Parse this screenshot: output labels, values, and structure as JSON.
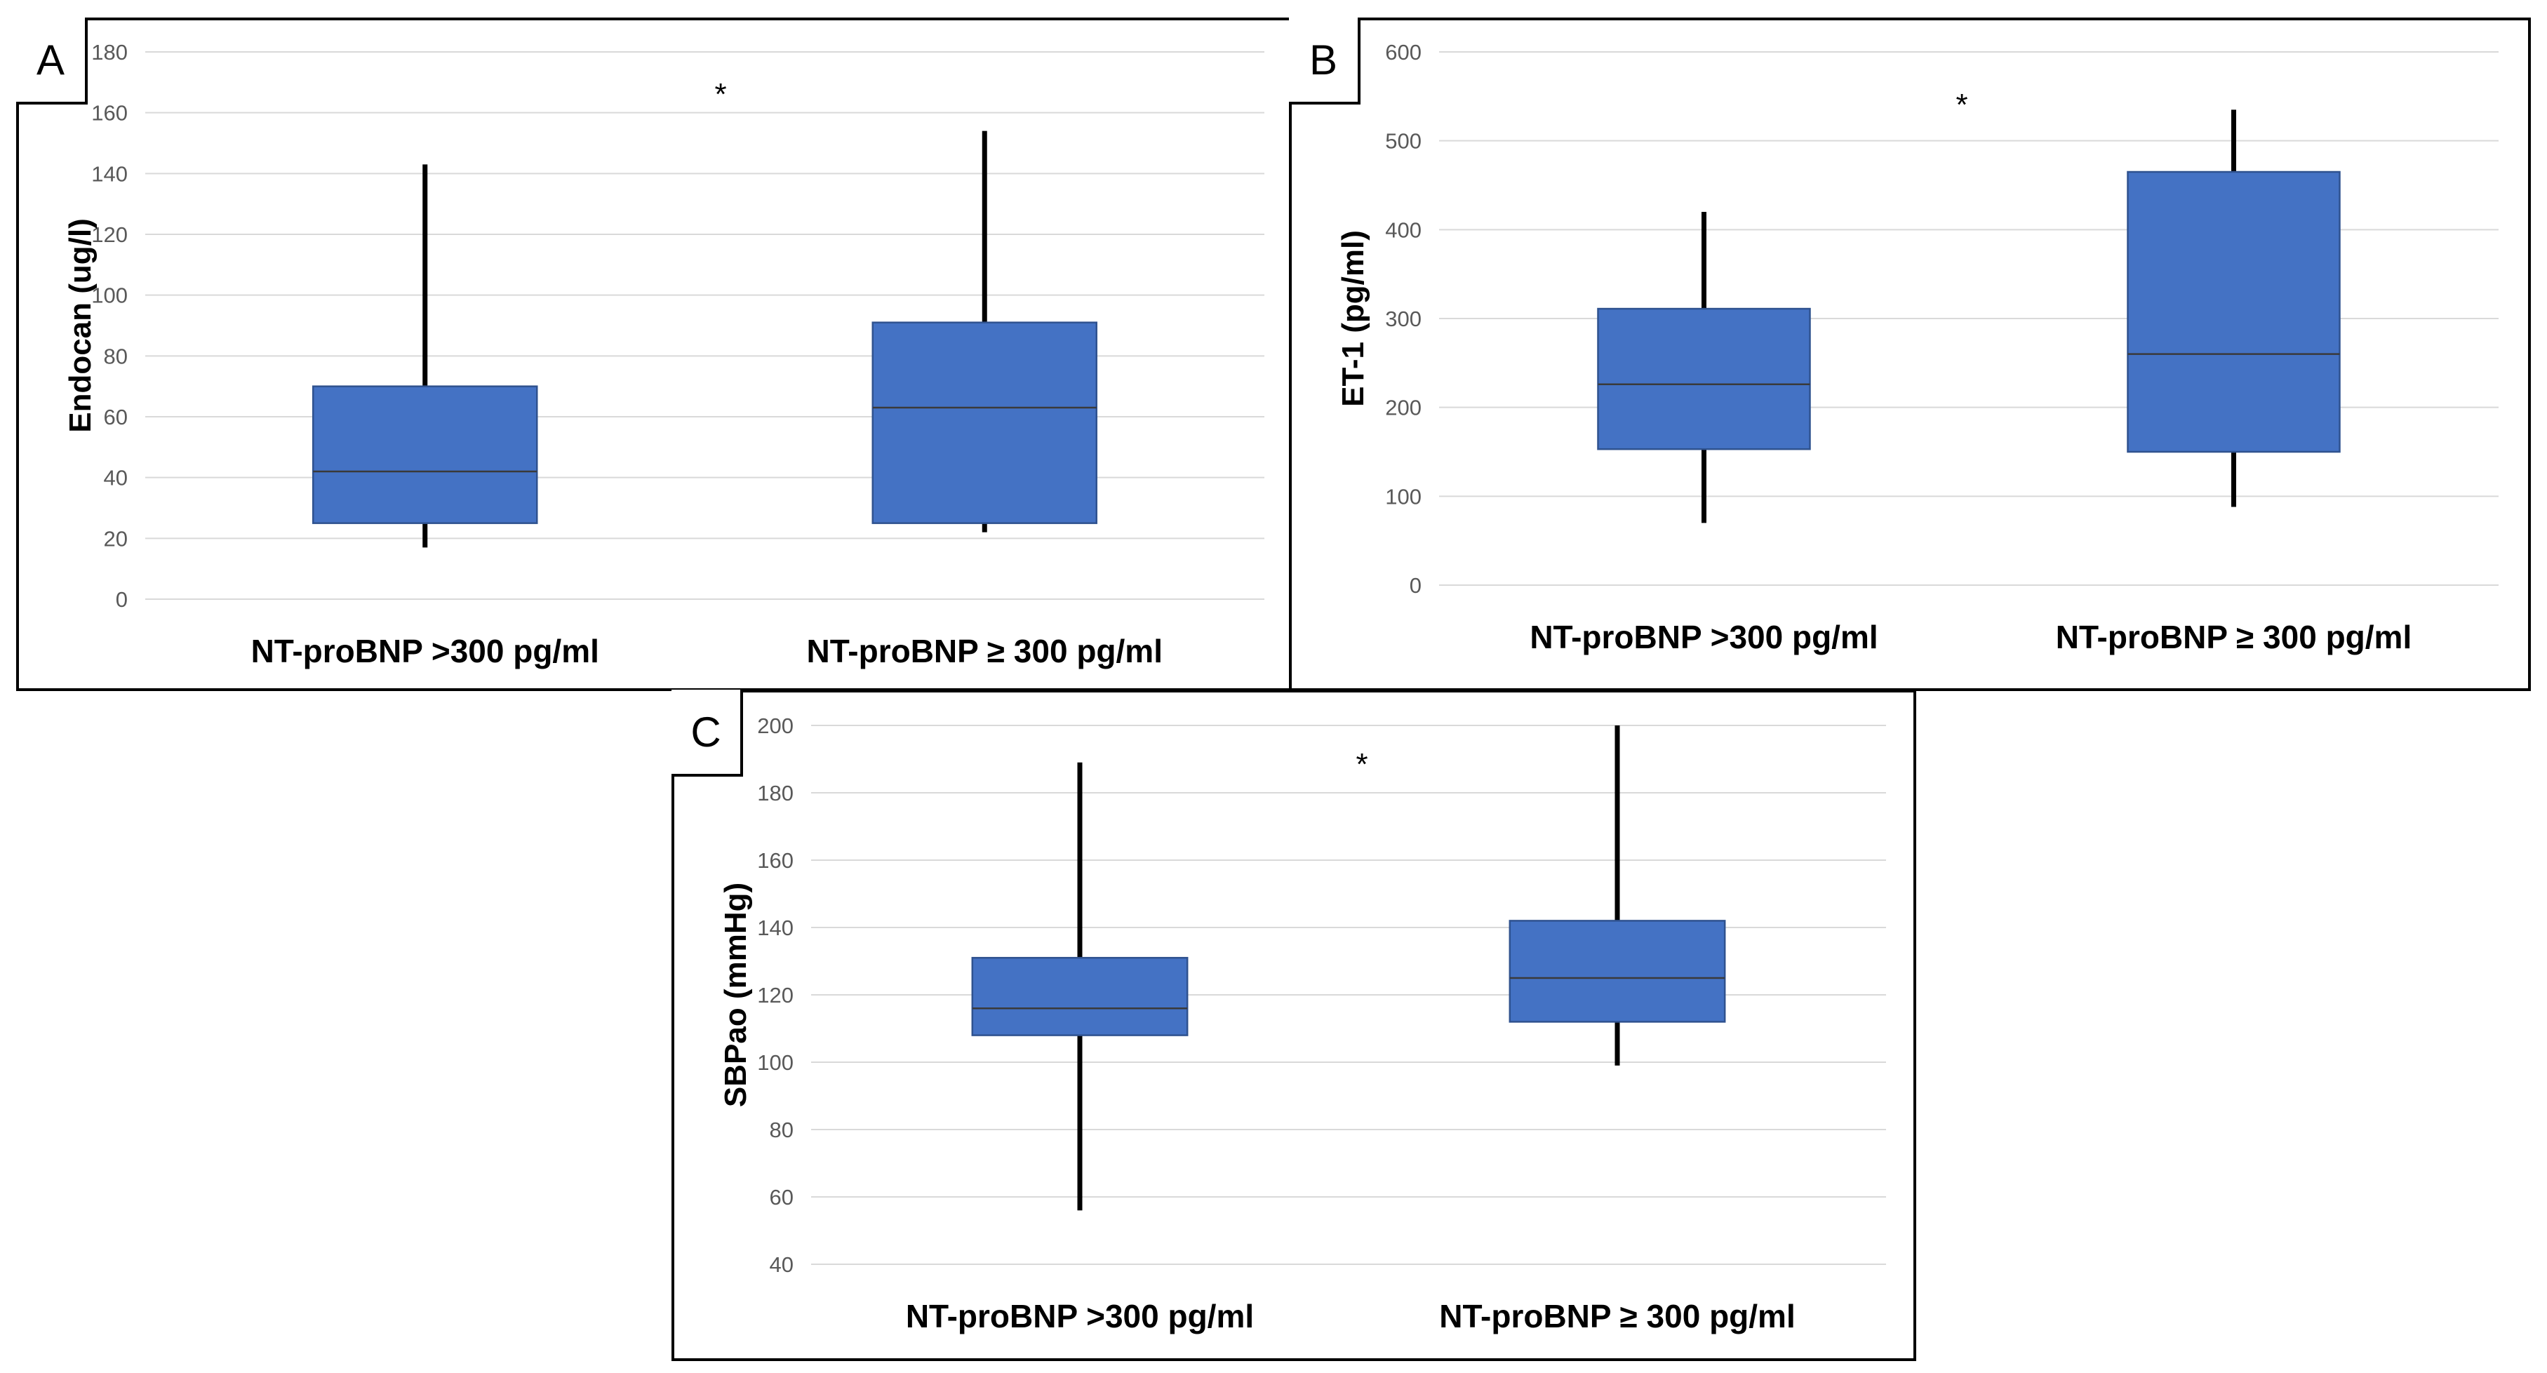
{
  "colors": {
    "box_fill": "#4472C4",
    "box_stroke": "#2F528F",
    "median": "#3A3A3A",
    "whisker": "#000000",
    "grid": "#D9D9D9"
  },
  "panels": [
    {
      "id": "a",
      "letter": "A",
      "significance": "*"
    },
    {
      "id": "b",
      "letter": "B",
      "significance": "*"
    },
    {
      "id": "c",
      "letter": "C",
      "significance": "*"
    }
  ],
  "chart_data": [
    {
      "type": "boxplot",
      "panel": "A",
      "ylabel": "Endocan (ug/l)",
      "ylim": [
        0,
        180
      ],
      "yticks": [
        0,
        20,
        40,
        60,
        80,
        100,
        120,
        140,
        160,
        180
      ],
      "categories": [
        "NT-proBNP >300 pg/ml",
        "NT-proBNP ≥ 300 pg/ml"
      ],
      "boxes": [
        {
          "min": 17,
          "q1": 25,
          "median": 42,
          "q3": 70,
          "max": 143
        },
        {
          "min": 22,
          "q1": 25,
          "median": 63,
          "q3": 91,
          "max": 154
        }
      ],
      "annotation": "*"
    },
    {
      "type": "boxplot",
      "panel": "B",
      "ylabel": "ET-1 (pg/ml)",
      "ylim": [
        0,
        600
      ],
      "yticks": [
        0,
        100,
        200,
        300,
        400,
        500,
        600
      ],
      "categories": [
        "NT-proBNP >300 pg/ml",
        "NT-proBNP ≥ 300 pg/ml"
      ],
      "boxes": [
        {
          "min": 70,
          "q1": 153,
          "median": 226,
          "q3": 311,
          "max": 420
        },
        {
          "min": 88,
          "q1": 150,
          "median": 260,
          "q3": 465,
          "max": 535
        }
      ],
      "annotation": "*"
    },
    {
      "type": "boxplot",
      "panel": "C",
      "ylabel": "SBPao (mmHg)",
      "ylim": [
        40,
        200
      ],
      "yticks": [
        40,
        60,
        80,
        100,
        120,
        140,
        160,
        180,
        200
      ],
      "categories": [
        "NT-proBNP >300 pg/ml",
        "NT-proBNP ≥ 300 pg/ml"
      ],
      "boxes": [
        {
          "min": 56,
          "q1": 108,
          "median": 116,
          "q3": 131,
          "max": 189
        },
        {
          "min": 99,
          "q1": 112,
          "median": 125,
          "q3": 142,
          "max": 200
        }
      ],
      "annotation": "*"
    }
  ]
}
